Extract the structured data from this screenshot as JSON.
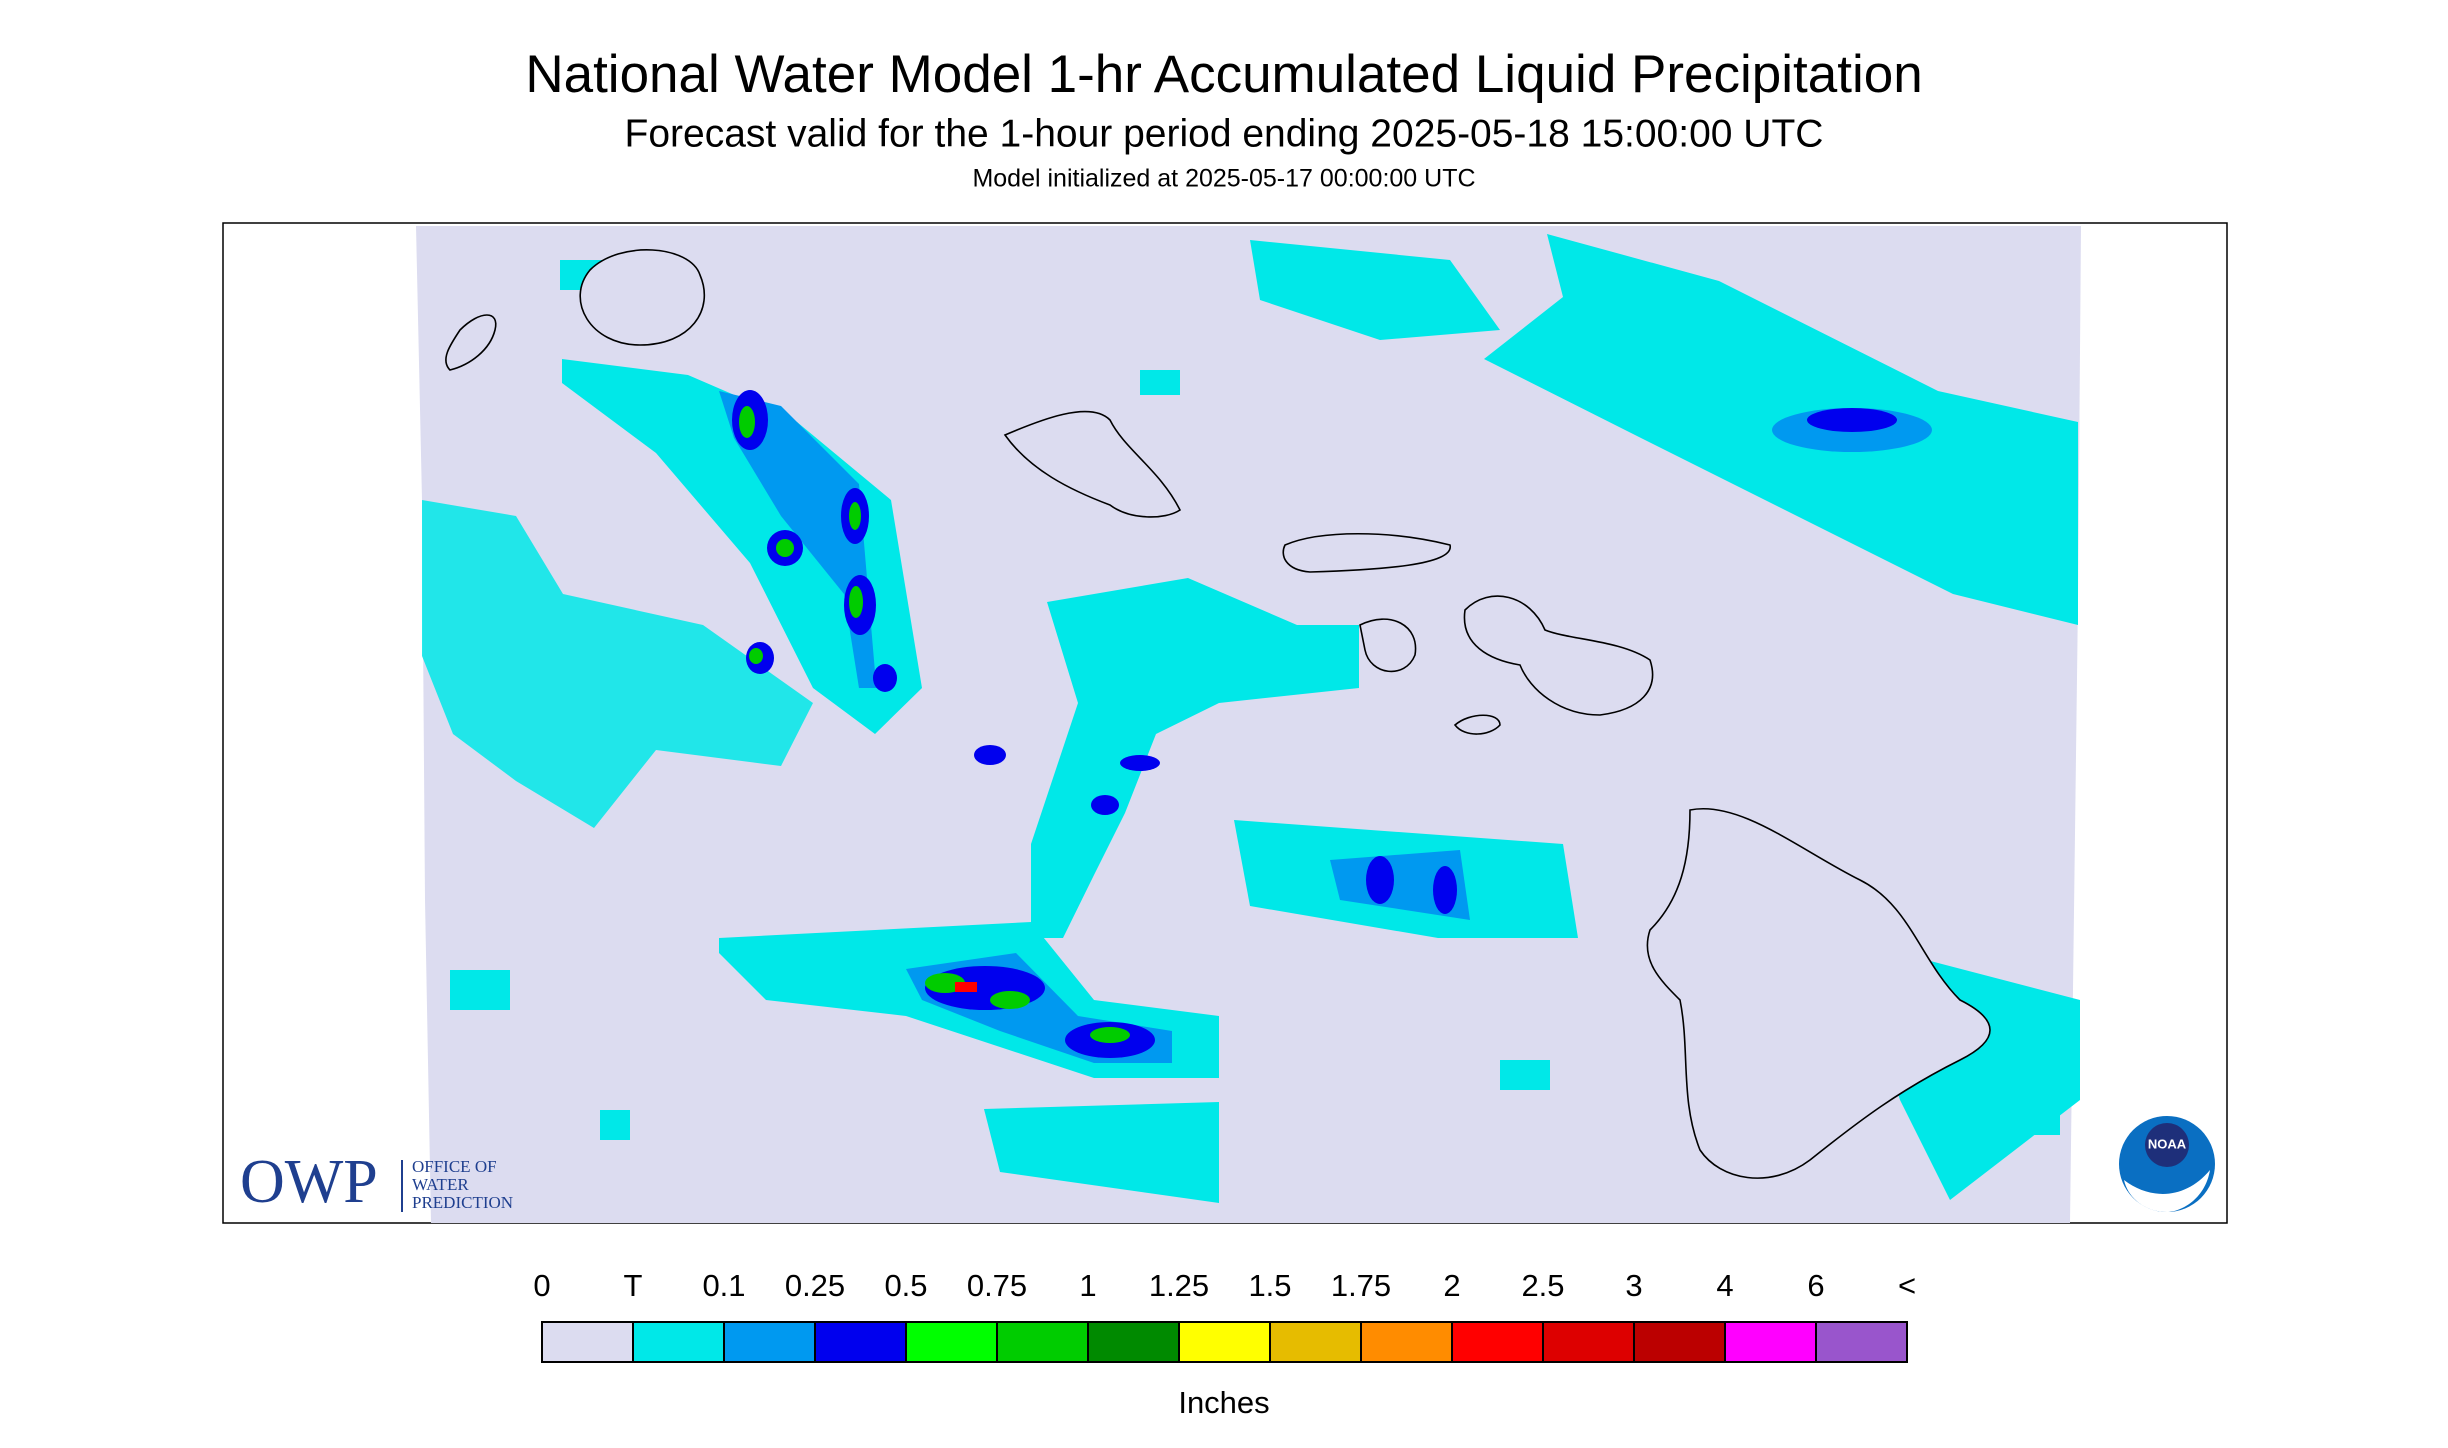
{
  "header": {
    "title": "National Water Model 1-hr Accumulated Liquid Precipitation",
    "subtitle": "Forecast valid for the 1-hour period ending 2025-05-18 15:00:00 UTC",
    "init": "Model initialized at 2025-05-17 00:00:00 UTC"
  },
  "legend": {
    "labels": [
      "0",
      "T",
      "0.1",
      "0.25",
      "0.5",
      "0.75",
      "1",
      "1.25",
      "1.5",
      "1.75",
      "2",
      "2.5",
      "3",
      "4",
      "6",
      "<"
    ],
    "colors": [
      "#dcdcf0",
      "#00e8e8",
      "#0099f0",
      "#0000ee",
      "#00ff00",
      "#00cc00",
      "#008a00",
      "#ffff00",
      "#e6bc00",
      "#ff8c00",
      "#ff0000",
      "#dd0000",
      "#bb0000",
      "#ff00ff",
      "#9955cc"
    ],
    "unit": "Inches"
  },
  "logos": {
    "owp": "OWP",
    "owp_lines": [
      "OFFICE OF",
      "WATER",
      "PREDICTION"
    ],
    "noaa": "NOAA"
  }
}
